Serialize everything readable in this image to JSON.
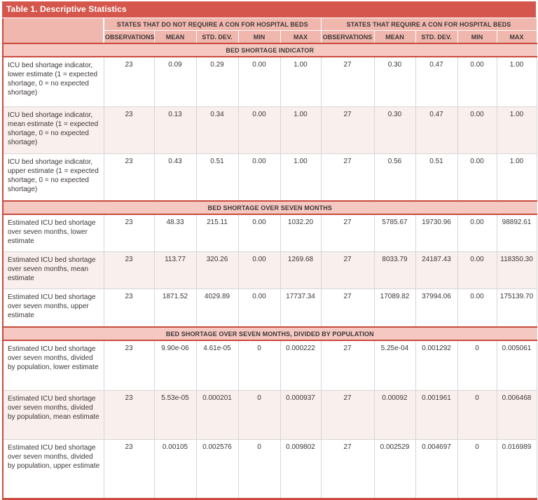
{
  "title": "Table 1. Descriptive Statistics",
  "colors": {
    "title_red": "#d4564c",
    "border_red": "#c94a3c",
    "header_pink": "#f0b7ae",
    "band_pink": "#f5c8c1",
    "row_pink": "#f9efed",
    "cell_gray": "#d6d6d6",
    "text_dark": "#3e3737"
  },
  "table": {
    "groups": [
      {
        "label": "STATES THAT DO NOT REQUIRE A CON FOR HOSPITAL BEDS"
      },
      {
        "label": "STATES THAT REQUIRE A CON FOR HOSPITAL BEDS"
      }
    ],
    "subheaders": [
      "OBSERVATIONS",
      "MEAN",
      "STD. DEV.",
      "MIN",
      "MAX"
    ],
    "sections": [
      {
        "header": "BED SHORTAGE INDICATOR",
        "rows": [
          {
            "label": "ICU bed shortage indicator, lower estimate (1 = expected shortage, 0 = no expected shortage)",
            "values": [
              "23",
              "0.09",
              "0.29",
              "0.00",
              "1.00",
              "27",
              "0.30",
              "0.47",
              "0.00",
              "1.00"
            ]
          },
          {
            "label": "ICU bed shortage indicator, mean estimate (1 = expected shortage, 0 = no expected shortage)",
            "values": [
              "23",
              "0.13",
              "0.34",
              "0.00",
              "1.00",
              "27",
              "0.30",
              "0.47",
              "0.00",
              "1.00"
            ]
          },
          {
            "label": "ICU bed shortage indicator, upper estimate (1 = expected shortage, 0 = no expected shortage)",
            "values": [
              "23",
              "0.43",
              "0.51",
              "0.00",
              "1.00",
              "27",
              "0.56",
              "0.51",
              "0.00",
              "1.00"
            ]
          }
        ]
      },
      {
        "header": "BED SHORTAGE OVER SEVEN MONTHS",
        "rows": [
          {
            "label": "Estimated ICU bed shortage over seven months, lower estimate",
            "values": [
              "23",
              "48.33",
              "215.11",
              "0.00",
              "1032.20",
              "27",
              "5785.67",
              "19730.96",
              "0.00",
              "98892.61"
            ]
          },
          {
            "label": "Estimated ICU bed shortage over seven months, mean estimate",
            "values": [
              "23",
              "113.77",
              "320.26",
              "0.00",
              "1269.68",
              "27",
              "8033.79",
              "24187.43",
              "0.00",
              "118350.30"
            ]
          },
          {
            "label": "Estimated ICU bed shortage over seven months, upper estimate",
            "values": [
              "23",
              "1871.52",
              "4029.89",
              "0.00",
              "17737.34",
              "27",
              "17089.82",
              "37994.06",
              "0.00",
              "175139.70"
            ]
          }
        ]
      },
      {
        "header": "BED SHORTAGE OVER SEVEN MONTHS, DIVIDED BY POPULATION",
        "rows": [
          {
            "label": "Estimated ICU bed shortage over seven months, divided by population, lower estimate",
            "values": [
              "23",
              "9.90e-06",
              "4.61e-05",
              "0",
              "0.000222",
              "27",
              "5.25e-04",
              "0.001292",
              "0",
              "0.005061"
            ]
          },
          {
            "label": "Estimated ICU bed shortage over seven months, divided by population, mean estimate",
            "values": [
              "23",
              "5.53e-05",
              "0.000201",
              "0",
              "0.000937",
              "27",
              "0.00092",
              "0.001961",
              "0",
              "0.006468"
            ]
          },
          {
            "label": "Estimated ICU bed shortage over seven months, divided by population, upper estimate",
            "values": [
              "23",
              "0.00105",
              "0.002576",
              "0",
              "0.009802",
              "27",
              "0.002529",
              "0.004697",
              "0",
              "0.016989"
            ]
          }
        ]
      }
    ]
  }
}
